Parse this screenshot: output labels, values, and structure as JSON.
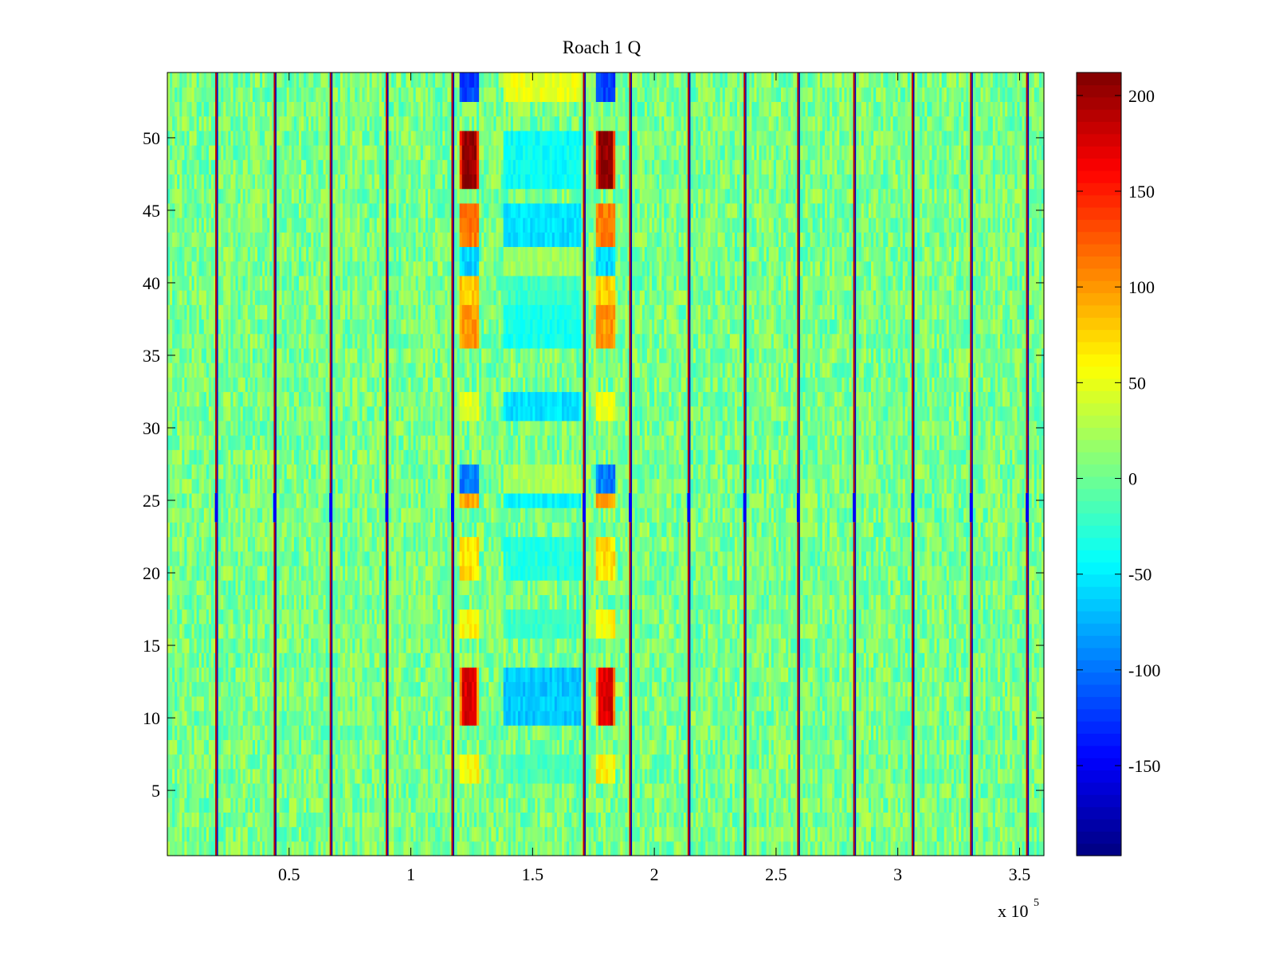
{
  "chart_data": {
    "type": "heatmap",
    "title": "Roach 1 Q",
    "xlabel": "",
    "ylabel": "",
    "x_multiplier_label": {
      "base": "x 10",
      "exponent": "5"
    },
    "xlim": [
      0,
      3.6
    ],
    "ylim": [
      0.5,
      54.5
    ],
    "x_ticks": [
      0.5,
      1,
      1.5,
      2,
      2.5,
      3,
      3.5
    ],
    "x_tick_labels": [
      "0.5",
      "1",
      "1.5",
      "2",
      "2.5",
      "3",
      "3.5"
    ],
    "y_ticks": [
      5,
      10,
      15,
      20,
      25,
      30,
      35,
      40,
      45,
      50
    ],
    "y_tick_labels": [
      "5",
      "10",
      "15",
      "20",
      "25",
      "30",
      "35",
      "40",
      "45",
      "50"
    ],
    "rows": 54,
    "colorbar": {
      "colormap": "jet",
      "clim": [
        -197,
        212
      ],
      "ticks": [
        -150,
        -100,
        -50,
        0,
        50,
        100,
        150,
        200
      ],
      "tick_labels": [
        "-150",
        "-100",
        "-50",
        "0",
        "50",
        "100",
        "150",
        "200"
      ]
    },
    "noise_level": 18,
    "vertical_stripes_x": [
      0.2,
      0.44,
      0.67,
      0.9,
      1.17,
      1.71,
      1.9,
      2.14,
      2.37,
      2.59,
      2.82,
      3.06,
      3.3,
      3.53
    ],
    "stripe_break_rows": [
      24,
      25
    ],
    "bursts": {
      "left_x_range": [
        1.2,
        1.28
      ],
      "right_x_range": [
        1.76,
        1.84
      ],
      "middle_x_range": [
        1.38,
        1.7
      ],
      "rows": [
        {
          "rows": [
            47,
            50
          ],
          "edge_value": 140,
          "peak_value": 205,
          "middle_value": -40
        },
        {
          "rows": [
            43,
            45
          ],
          "edge_value": 110,
          "peak_value": 130,
          "middle_value": -55
        },
        {
          "rows": [
            41,
            42
          ],
          "edge_value": -60,
          "peak_value": -60,
          "middle_value": 20
        },
        {
          "rows": [
            39,
            40
          ],
          "edge_value": 80,
          "peak_value": 90,
          "middle_value": -20
        },
        {
          "rows": [
            36,
            38
          ],
          "edge_value": 100,
          "peak_value": 130,
          "middle_value": -35
        },
        {
          "rows": [
            31,
            32
          ],
          "edge_value": 50,
          "peak_value": 60,
          "middle_value": -55
        },
        {
          "rows": [
            26,
            27
          ],
          "edge_value": -95,
          "peak_value": -110,
          "middle_value": 25
        },
        {
          "rows": [
            25,
            25
          ],
          "edge_value": 95,
          "peak_value": 105,
          "middle_value": -45
        },
        {
          "rows": [
            20,
            22
          ],
          "edge_value": 70,
          "peak_value": 100,
          "middle_value": -30
        },
        {
          "rows": [
            16,
            17
          ],
          "edge_value": 60,
          "peak_value": 80,
          "middle_value": -20
        },
        {
          "rows": [
            10,
            13
          ],
          "edge_value": 100,
          "peak_value": 175,
          "middle_value": -65
        },
        {
          "rows": [
            6,
            7
          ],
          "edge_value": 60,
          "peak_value": 90,
          "middle_value": -15
        },
        {
          "rows": [
            53,
            54
          ],
          "edge_value": -120,
          "peak_value": -130,
          "middle_value": 50
        }
      ]
    }
  }
}
